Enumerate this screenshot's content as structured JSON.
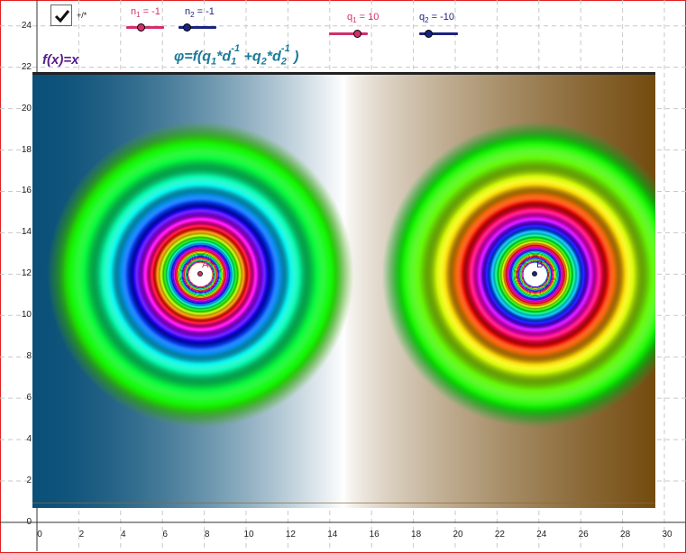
{
  "axes": {
    "y_ticks": [
      "24",
      "22",
      "20",
      "18",
      "16",
      "14",
      "12",
      "10",
      "8",
      "6",
      "4",
      "2",
      "0"
    ],
    "x_ticks": [
      "0",
      "2",
      "4",
      "6",
      "8",
      "10",
      "12",
      "14",
      "16",
      "18",
      "20",
      "22",
      "24",
      "26",
      "28",
      "30"
    ]
  },
  "checkbox": {
    "label": "+/*",
    "checked": true
  },
  "sliders": [
    {
      "name": "n1",
      "label": "n",
      "sub": "1",
      "value_text": "= -1",
      "color": "#d0306a",
      "value": -1
    },
    {
      "name": "n2",
      "label": "n",
      "sub": "2",
      "value_text": "= -1",
      "color": "#1a237e",
      "value": -1
    },
    {
      "name": "q1",
      "label": "q",
      "sub": "1",
      "value_text": "= 10",
      "color": "#d0306a",
      "value": 10
    },
    {
      "name": "q2",
      "label": "q",
      "sub": "2",
      "value_text": "= -10",
      "color": "#1a237e",
      "value": -10
    }
  ],
  "function_label": "f(x)=x",
  "formula": {
    "lhs": "φ=f(",
    "q1": "q",
    "q1_sub": "1",
    "d1": "*d",
    "d1_sub": "1",
    "d1_exp": "-1",
    "plus": "+q",
    "q2_sub": "2",
    "d2": "*d",
    "d2_sub": "2",
    "d2_exp": "-1",
    "rhs": ")"
  },
  "points": [
    {
      "name": "A",
      "label": "A",
      "color": "#d0306a",
      "x": 7.8,
      "y": 12
    },
    {
      "name": "B",
      "label": "B",
      "color": "#1a237e",
      "x": 23.8,
      "y": 12
    }
  ],
  "colors": {
    "positive": "#0a5a7a",
    "negative": "#7a4a0a",
    "frame": "#e02020"
  }
}
